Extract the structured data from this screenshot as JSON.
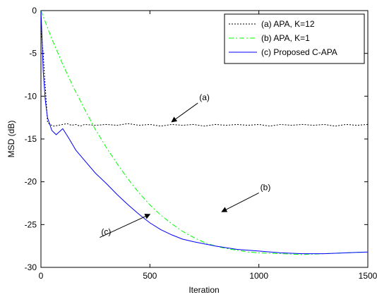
{
  "chart_data": {
    "type": "line",
    "title": "",
    "xlabel": "Iteration",
    "ylabel": "MSD (dB)",
    "xlim": [
      0,
      1500
    ],
    "ylim": [
      -30,
      0
    ],
    "xticks": [
      0,
      500,
      1000,
      1500
    ],
    "yticks": [
      0,
      -5,
      -10,
      -15,
      -20,
      -25,
      -30
    ],
    "grid": false,
    "legend_position": "top-right",
    "series": [
      {
        "name": "(a) APA, K=12",
        "color": "#000000",
        "style": "dotted",
        "x": [
          0,
          10,
          20,
          30,
          40,
          60,
          80,
          100,
          120,
          140,
          160,
          180,
          200,
          250,
          300,
          350,
          400,
          450,
          500,
          550,
          600,
          650,
          700,
          750,
          800,
          850,
          900,
          950,
          1000,
          1050,
          1100,
          1150,
          1200,
          1250,
          1300,
          1350,
          1400,
          1450,
          1500
        ],
        "y": [
          -2,
          -5,
          -9,
          -13,
          -13.3,
          -13.5,
          -13.4,
          -13.3,
          -13.2,
          -13.4,
          -13.3,
          -13.5,
          -13.3,
          -13.4,
          -13.3,
          -13.4,
          -13.2,
          -13.4,
          -13.3,
          -13.5,
          -13.3,
          -13.4,
          -13.3,
          -13.5,
          -13.3,
          -13.4,
          -13.3,
          -13.4,
          -13.3,
          -13.5,
          -13.3,
          -13.4,
          -13.3,
          -13.4,
          -13.3,
          -13.5,
          -13.3,
          -13.4,
          -13.3
        ]
      },
      {
        "name": "(b) APA, K=1",
        "color": "#00ff00",
        "style": "dashdot",
        "x": [
          0,
          50,
          100,
          150,
          200,
          250,
          300,
          350,
          400,
          450,
          500,
          550,
          600,
          650,
          700,
          750,
          800,
          850,
          900,
          950,
          1000,
          1100,
          1200,
          1300,
          1400,
          1500
        ],
        "y": [
          0,
          -3.3,
          -6.3,
          -9,
          -11.5,
          -13.9,
          -16,
          -17.9,
          -19.7,
          -21.3,
          -22.7,
          -23.9,
          -24.9,
          -25.8,
          -26.5,
          -27.1,
          -27.5,
          -27.8,
          -28.0,
          -28.2,
          -28.3,
          -28.4,
          -28.5,
          -28.4,
          -28.3,
          -28.2
        ]
      },
      {
        "name": "(c) Proposed C-APA",
        "color": "#0000ff",
        "style": "solid",
        "x": [
          0,
          5,
          10,
          20,
          30,
          50,
          70,
          100,
          130,
          160,
          200,
          250,
          300,
          350,
          400,
          450,
          500,
          550,
          600,
          650,
          700,
          800,
          900,
          1000,
          1100,
          1200,
          1300,
          1400,
          1500
        ],
        "y": [
          0,
          -3,
          -7,
          -10.5,
          -12.5,
          -14,
          -14.5,
          -13.8,
          -15,
          -16.3,
          -17.5,
          -19,
          -20.2,
          -21.5,
          -22.7,
          -23.8,
          -24.8,
          -25.6,
          -26.2,
          -26.7,
          -27.0,
          -27.5,
          -27.9,
          -28.1,
          -28.3,
          -28.4,
          -28.4,
          -28.3,
          -28.2
        ]
      }
    ],
    "annotations": [
      {
        "label": "(a)",
        "text_x": 720,
        "text_y": -10.8,
        "arrow_to_x": 600,
        "arrow_to_y": -13.0
      },
      {
        "label": "(b)",
        "text_x": 1000,
        "text_y": -21.3,
        "arrow_to_x": 830,
        "arrow_to_y": -23.5
      },
      {
        "label": "(c)",
        "text_x": 270,
        "text_y": -26.5,
        "arrow_to_x": 500,
        "arrow_to_y": -23.8
      }
    ]
  }
}
